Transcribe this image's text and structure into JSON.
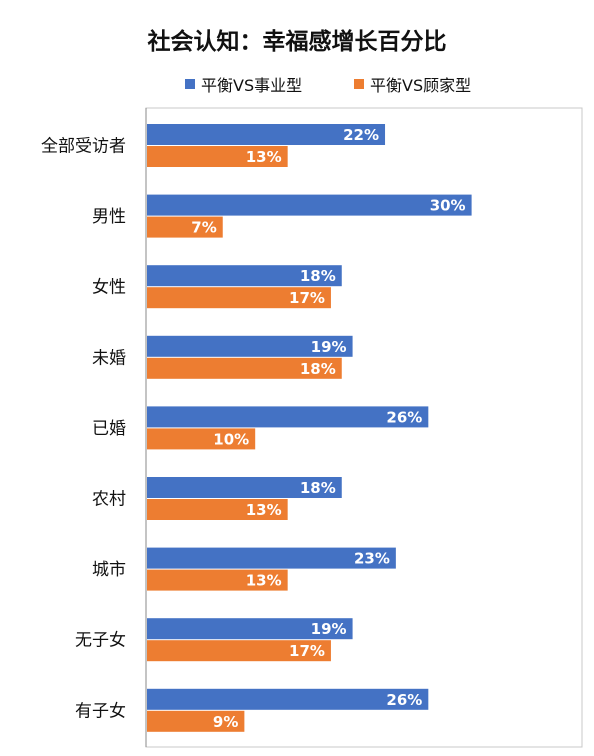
{
  "chart_data": {
    "type": "bar",
    "orientation": "horizontal",
    "title": "社会认知：幸福感增长百分比",
    "categories": [
      "全部受访者",
      "男性",
      "女性",
      "未婚",
      "已婚",
      "农村",
      "城市",
      "无子女",
      "有子女"
    ],
    "series": [
      {
        "name": "平衡VS事业型",
        "color": "#4472C4",
        "values": [
          22,
          30,
          18,
          19,
          26,
          18,
          23,
          19,
          26
        ],
        "labels": [
          "22%",
          "30%",
          "18%",
          "19%",
          "26%",
          "18%",
          "23%",
          "19%",
          "26%"
        ]
      },
      {
        "name": "平衡VS顾家型",
        "color": "#ED7D31",
        "values": [
          13,
          7,
          17,
          18,
          10,
          13,
          13,
          17,
          9
        ],
        "labels": [
          "13%",
          "7%",
          "17%",
          "18%",
          "10%",
          "13%",
          "13%",
          "17%",
          "9%"
        ]
      }
    ],
    "xlim": [
      0,
      40
    ],
    "grid": false,
    "legend_position": "top"
  }
}
